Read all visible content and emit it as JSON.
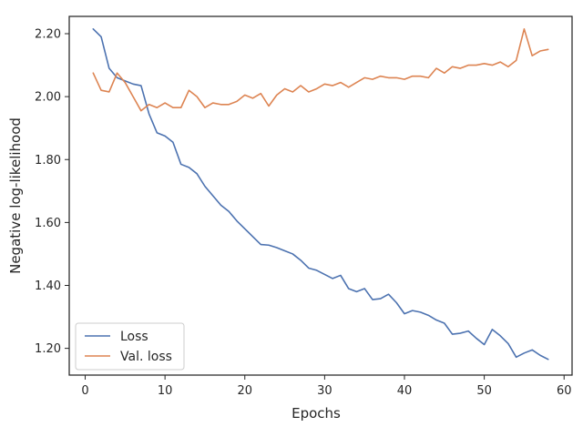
{
  "chart_data": {
    "type": "line",
    "xlabel": "Epochs",
    "ylabel": "Negative log-likelihood",
    "xlim": [
      -2.0,
      61.0
    ],
    "ylim": [
      1.115,
      2.255
    ],
    "xticks": [
      0,
      10,
      20,
      30,
      40,
      50,
      60
    ],
    "xtick_labels": [
      "0",
      "10",
      "20",
      "30",
      "40",
      "50",
      "60"
    ],
    "yticks": [
      1.2,
      1.4,
      1.6,
      1.8,
      2.0,
      2.2
    ],
    "ytick_labels": [
      "1.20",
      "1.40",
      "1.60",
      "1.80",
      "2.00",
      "2.20"
    ],
    "grid": false,
    "legend_position": "lower-left",
    "x": [
      1,
      2,
      3,
      4,
      5,
      6,
      7,
      8,
      9,
      10,
      11,
      12,
      13,
      14,
      15,
      16,
      17,
      18,
      19,
      20,
      21,
      22,
      23,
      24,
      25,
      26,
      27,
      28,
      29,
      30,
      31,
      32,
      33,
      34,
      35,
      36,
      37,
      38,
      39,
      40,
      41,
      42,
      43,
      44,
      45,
      46,
      47,
      48,
      49,
      50,
      51,
      52,
      53,
      54,
      55,
      56,
      57,
      58
    ],
    "series": [
      {
        "name": "Loss",
        "color": "#4c72b0",
        "values": [
          2.215,
          2.19,
          2.09,
          2.06,
          2.05,
          2.04,
          2.035,
          1.945,
          1.885,
          1.875,
          1.855,
          1.785,
          1.775,
          1.755,
          1.715,
          1.685,
          1.655,
          1.635,
          1.605,
          1.58,
          1.555,
          1.53,
          1.528,
          1.52,
          1.51,
          1.5,
          1.48,
          1.455,
          1.448,
          1.435,
          1.422,
          1.432,
          1.39,
          1.38,
          1.39,
          1.355,
          1.358,
          1.372,
          1.345,
          1.31,
          1.32,
          1.315,
          1.305,
          1.29,
          1.28,
          1.245,
          1.248,
          1.255,
          1.232,
          1.212,
          1.26,
          1.24,
          1.215,
          1.172,
          1.185,
          1.195,
          1.178,
          1.165
        ]
      },
      {
        "name": "Val. loss",
        "color": "#dd8452",
        "values": [
          2.075,
          2.02,
          2.015,
          2.075,
          2.045,
          2.0,
          1.955,
          1.975,
          1.965,
          1.98,
          1.965,
          1.965,
          2.02,
          2.0,
          1.965,
          1.98,
          1.975,
          1.975,
          1.985,
          2.005,
          1.995,
          2.01,
          1.97,
          2.005,
          2.025,
          2.015,
          2.035,
          2.015,
          2.025,
          2.04,
          2.035,
          2.045,
          2.03,
          2.045,
          2.06,
          2.055,
          2.065,
          2.06,
          2.06,
          2.055,
          2.065,
          2.065,
          2.06,
          2.09,
          2.075,
          2.095,
          2.09,
          2.1,
          2.1,
          2.105,
          2.1,
          2.11,
          2.095,
          2.115,
          2.215,
          2.13,
          2.145,
          2.15
        ]
      }
    ]
  }
}
